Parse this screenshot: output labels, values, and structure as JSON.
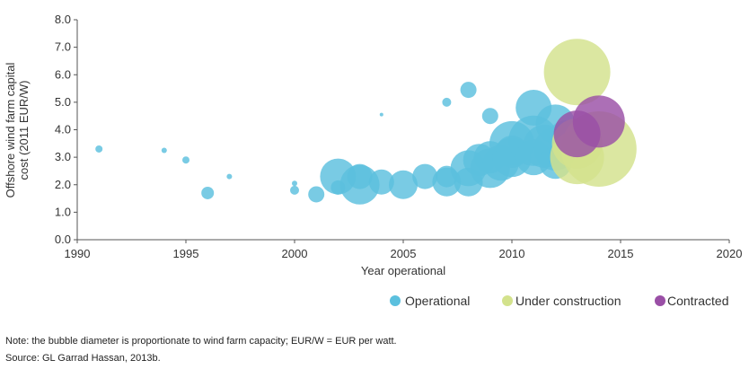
{
  "chart_data": {
    "type": "scatter",
    "subtype": "bubble",
    "xlabel": "Year operational",
    "ylabel": "Offshore wind farm capital cost (2011 EUR/W)",
    "ylabel_lines": [
      "Offshore wind farm capital",
      "cost (2011 EUR/W)"
    ],
    "xlim": [
      1990,
      2020
    ],
    "ylim": [
      0,
      8
    ],
    "x_ticks": [
      1990,
      1995,
      2000,
      2005,
      2010,
      2015,
      2020
    ],
    "y_ticks": [
      "0.0",
      "1.0",
      "2.0",
      "3.0",
      "4.0",
      "5.0",
      "6.0",
      "7.0",
      "8.0"
    ],
    "legend_position": "bottom-right",
    "series": [
      {
        "name": "Operational",
        "color": "#5bc0de",
        "points": [
          {
            "x": 1991,
            "y": 3.3,
            "size": 4
          },
          {
            "x": 1994,
            "y": 3.25,
            "size": 3
          },
          {
            "x": 1995,
            "y": 2.9,
            "size": 4
          },
          {
            "x": 1996,
            "y": 1.7,
            "size": 7
          },
          {
            "x": 1997,
            "y": 2.3,
            "size": 3
          },
          {
            "x": 2000,
            "y": 2.05,
            "size": 3
          },
          {
            "x": 2000,
            "y": 1.8,
            "size": 5
          },
          {
            "x": 2001,
            "y": 1.65,
            "size": 9
          },
          {
            "x": 2002,
            "y": 1.9,
            "size": 8
          },
          {
            "x": 2002,
            "y": 2.3,
            "size": 20
          },
          {
            "x": 2003,
            "y": 2.0,
            "size": 22
          },
          {
            "x": 2003,
            "y": 2.3,
            "size": 14
          },
          {
            "x": 2004,
            "y": 4.55,
            "size": 2
          },
          {
            "x": 2004,
            "y": 2.1,
            "size": 14
          },
          {
            "x": 2005,
            "y": 2.0,
            "size": 16
          },
          {
            "x": 2006,
            "y": 2.3,
            "size": 14
          },
          {
            "x": 2007,
            "y": 5.0,
            "size": 5
          },
          {
            "x": 2007,
            "y": 2.1,
            "size": 16
          },
          {
            "x": 2007,
            "y": 2.3,
            "size": 12
          },
          {
            "x": 2008,
            "y": 5.45,
            "size": 9
          },
          {
            "x": 2008,
            "y": 2.1,
            "size": 16
          },
          {
            "x": 2008,
            "y": 2.6,
            "size": 20
          },
          {
            "x": 2008.5,
            "y": 2.9,
            "size": 18
          },
          {
            "x": 2009,
            "y": 4.5,
            "size": 9
          },
          {
            "x": 2009,
            "y": 2.6,
            "size": 22
          },
          {
            "x": 2009,
            "y": 3.0,
            "size": 18
          },
          {
            "x": 2009.5,
            "y": 2.8,
            "size": 20
          },
          {
            "x": 2010,
            "y": 3.0,
            "size": 22
          },
          {
            "x": 2010,
            "y": 3.5,
            "size": 25
          },
          {
            "x": 2010,
            "y": 3.2,
            "size": 18
          },
          {
            "x": 2011,
            "y": 4.8,
            "size": 20
          },
          {
            "x": 2011,
            "y": 3.6,
            "size": 28
          },
          {
            "x": 2011,
            "y": 3.0,
            "size": 20
          },
          {
            "x": 2011.5,
            "y": 3.4,
            "size": 24
          },
          {
            "x": 2012,
            "y": 4.2,
            "size": 22
          },
          {
            "x": 2012,
            "y": 3.3,
            "size": 24
          },
          {
            "x": 2012,
            "y": 2.8,
            "size": 18
          },
          {
            "x": 2012.5,
            "y": 3.7,
            "size": 20
          }
        ]
      },
      {
        "name": "Under construction",
        "color": "#d3e28c",
        "points": [
          {
            "x": 2013,
            "y": 6.1,
            "size": 37
          },
          {
            "x": 2013,
            "y": 3.5,
            "size": 28
          },
          {
            "x": 2013,
            "y": 3.0,
            "size": 30
          },
          {
            "x": 2014,
            "y": 3.3,
            "size": 42
          }
        ]
      },
      {
        "name": "Contracted",
        "color": "#9a4fa6",
        "points": [
          {
            "x": 2013,
            "y": 3.85,
            "size": 26
          },
          {
            "x": 2014,
            "y": 4.3,
            "size": 29
          }
        ]
      }
    ]
  },
  "notes": {
    "note": "Note: the bubble diameter is proportionate to wind farm capacity; EUR/W = EUR per watt.",
    "source": "Source: GL Garrad Hassan, 2013b."
  }
}
